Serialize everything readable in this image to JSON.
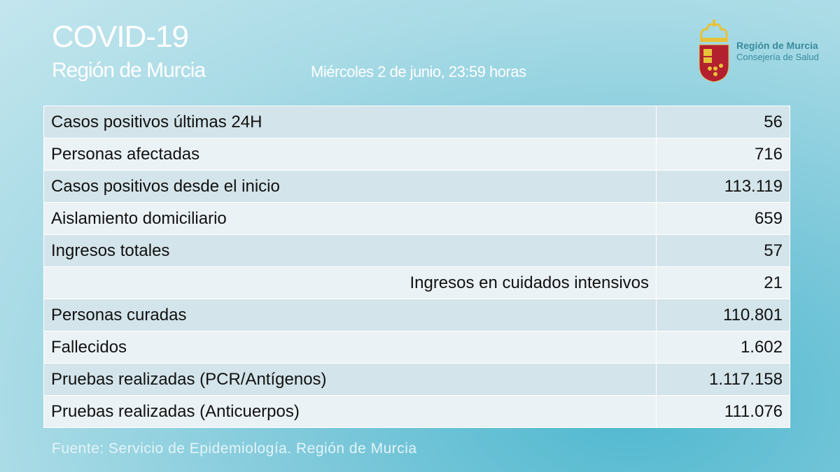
{
  "header": {
    "title": "COVID-19",
    "subtitle": "Región de Murcia",
    "date": "Miércoles 2 de junio, 23:59 horas"
  },
  "logo": {
    "line1": "Región de Murcia",
    "line2": "Consejería de Salud"
  },
  "table": {
    "rows": [
      {
        "label": "Casos positivos últimas 24H",
        "value": "56"
      },
      {
        "label": "Personas afectadas",
        "value": "716"
      },
      {
        "label": "Casos positivos desde el inicio",
        "value": "113.119"
      },
      {
        "label": "Aislamiento domiciliario",
        "value": "659"
      },
      {
        "label": "Ingresos totales",
        "value": "57"
      },
      {
        "label": "Ingresos en cuidados intensivos",
        "value": "21",
        "indented": true
      },
      {
        "label": "Personas curadas",
        "value": "110.801"
      },
      {
        "label": "Fallecidos",
        "value": "1.602"
      },
      {
        "label": "Pruebas realizadas (PCR/Antígenos)",
        "value": "1.117.158"
      },
      {
        "label": "Pruebas realizadas (Anticuerpos)",
        "value": "111.076"
      }
    ]
  },
  "footer": {
    "source": "Fuente: Servicio de Epidemiología. Región de Murcia"
  }
}
